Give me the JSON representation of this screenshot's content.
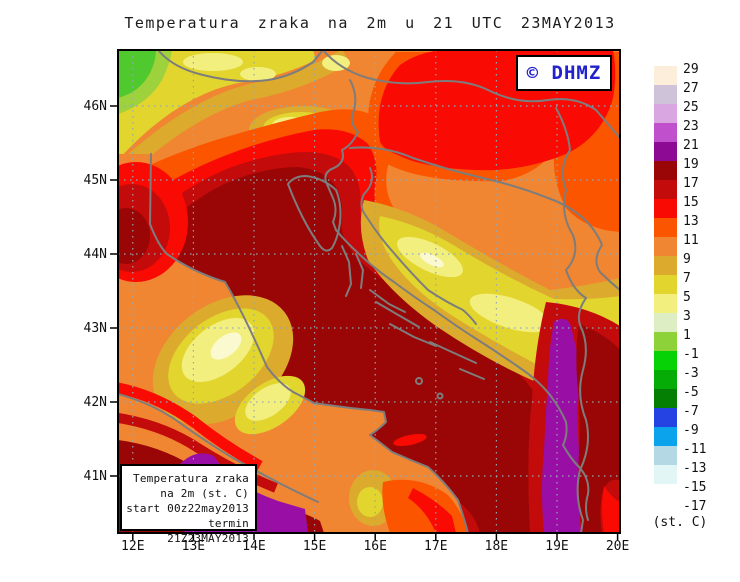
{
  "title": "Temperatura zraka na 2m u 21 UTC 23MAY2013",
  "watermark": {
    "label": "© DHMZ",
    "color": "#2222cc"
  },
  "info_box": {
    "lines": [
      "Temperatura zraka",
      "na 2m (st. C)",
      "start 00z22may2013",
      "termin 21Z23MAY2013"
    ]
  },
  "axes": {
    "lat_ticks": [
      "46N",
      "45N",
      "44N",
      "43N",
      "42N",
      "41N"
    ],
    "lon_ticks": [
      "12E",
      "13E",
      "14E",
      "15E",
      "16E",
      "17E",
      "18E",
      "19E",
      "20E"
    ]
  },
  "legend": {
    "unit": "(st. C)",
    "tick_labels": [
      "29",
      "27",
      "25",
      "23",
      "21",
      "19",
      "17",
      "15",
      "13",
      "11",
      "9",
      "7",
      "5",
      "3",
      "1",
      "-1",
      "-3",
      "-5",
      "-7",
      "-9",
      "-11",
      "-13",
      "-15",
      "-17"
    ],
    "box_colors": [
      "#fceedb",
      "#cfc3da",
      "#d9a6e2",
      "#c050cc",
      "#8c0a94",
      "#9a0606",
      "#c40b0b",
      "#f90b04",
      "#fc5500",
      "#f08632",
      "#dcaa2d",
      "#e2d52e",
      "#f2ef7e",
      "#ddeec4",
      "#8ed23a",
      "#06d206",
      "#05ac05",
      "#047f04",
      "#2542e2",
      "#0aa3ec",
      "#b4d8e4",
      "#e2f6f6",
      "#ffffff"
    ],
    "field_colors": {
      "sea_warm": "#9a0606",
      "dark_red": "#c40b0b",
      "red": "#f90b04",
      "orange_red": "#fc5500",
      "orange": "#f08632",
      "golden": "#dcaa2d",
      "yellow": "#e2d52e",
      "pale_yellow": "#f2ef7e",
      "green": "#50c92e",
      "purple": "#990fa6"
    }
  }
}
